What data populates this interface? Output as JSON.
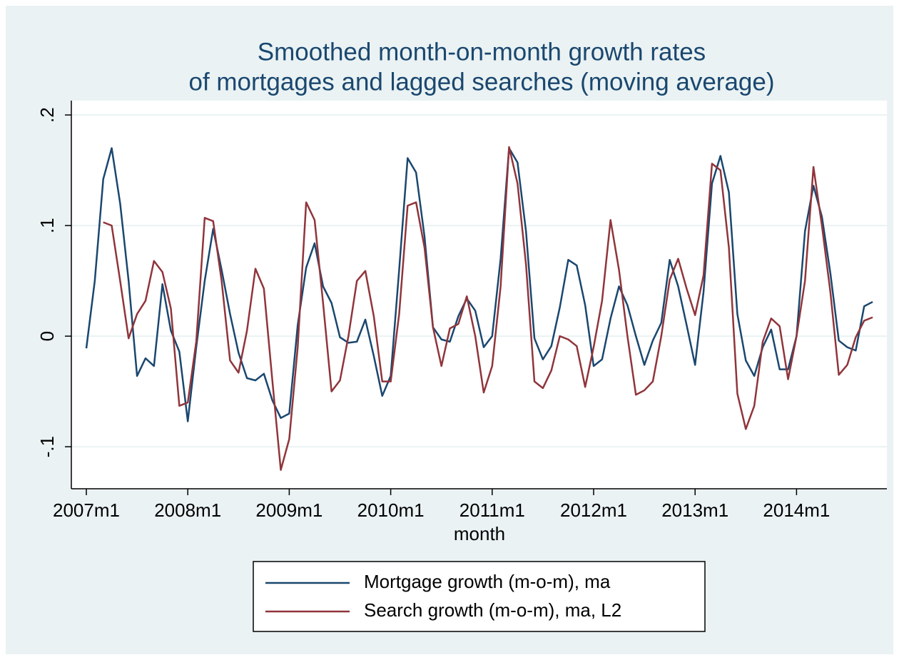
{
  "chart_data": {
    "type": "line",
    "title": [
      "Smoothed month-on-month growth rates",
      "of mortgages and lagged searches (moving average)"
    ],
    "xlabel": "month",
    "categories": [
      "2007m1",
      null,
      null,
      null,
      null,
      null,
      null,
      null,
      null,
      null,
      null,
      null,
      "2008m1",
      null,
      null,
      null,
      null,
      null,
      null,
      null,
      null,
      null,
      null,
      null,
      "2009m1",
      null,
      null,
      null,
      null,
      null,
      null,
      null,
      null,
      null,
      null,
      null,
      "2010m1",
      null,
      null,
      null,
      null,
      null,
      null,
      null,
      null,
      null,
      null,
      null,
      "2011m1",
      null,
      null,
      null,
      null,
      null,
      null,
      null,
      null,
      null,
      null,
      null,
      "2012m1",
      null,
      null,
      null,
      null,
      null,
      null,
      null,
      null,
      null,
      null,
      null,
      "2013m1",
      null,
      null,
      null,
      null,
      null,
      null,
      null,
      null,
      null,
      null,
      null,
      "2014m1",
      null,
      null,
      null,
      null,
      null,
      null,
      null,
      null,
      null
    ],
    "series": [
      {
        "name": "Mortgage growth (m-o-m), ma",
        "color": "#1a476f",
        "values": [
          -0.011,
          0.05,
          0.142,
          0.17,
          0.12,
          0.05,
          -0.036,
          -0.02,
          -0.027,
          0.047,
          0.005,
          -0.014,
          -0.077,
          -0.01,
          0.05,
          0.097,
          0.06,
          0.02,
          -0.015,
          -0.038,
          -0.04,
          -0.034,
          -0.058,
          -0.074,
          -0.07,
          0.01,
          0.062,
          0.084,
          0.045,
          0.03,
          -0.001,
          -0.006,
          -0.005,
          0.015,
          -0.018,
          -0.054,
          -0.036,
          0.06,
          0.161,
          0.148,
          0.09,
          0.008,
          -0.003,
          -0.005,
          0.018,
          0.034,
          0.023,
          -0.01,
          0.0,
          0.07,
          0.17,
          0.157,
          0.095,
          -0.002,
          -0.021,
          -0.009,
          0.026,
          0.069,
          0.064,
          0.028,
          -0.027,
          -0.021,
          0.016,
          0.045,
          0.028,
          0.0,
          -0.026,
          -0.004,
          0.012,
          0.069,
          0.045,
          0.01,
          -0.026,
          0.04,
          0.138,
          0.163,
          0.13,
          0.02,
          -0.022,
          -0.036,
          -0.01,
          0.006,
          -0.03,
          -0.03,
          0.0,
          0.095,
          0.136,
          0.108,
          0.057,
          -0.004,
          -0.01,
          -0.013,
          0.027,
          0.031
        ]
      },
      {
        "name": "Search growth (m-o-m), ma, L2",
        "color": "#90353b",
        "values": [
          null,
          null,
          0.103,
          0.1,
          0.05,
          -0.002,
          0.02,
          0.032,
          0.068,
          0.058,
          0.025,
          -0.063,
          -0.06,
          -0.005,
          0.107,
          0.104,
          0.05,
          -0.022,
          -0.033,
          0.005,
          0.061,
          0.043,
          -0.04,
          -0.121,
          -0.093,
          -0.01,
          0.121,
          0.105,
          0.03,
          -0.05,
          -0.04,
          0.0,
          0.05,
          0.059,
          0.018,
          -0.041,
          -0.041,
          0.02,
          0.118,
          0.121,
          0.08,
          0.008,
          -0.027,
          0.007,
          0.011,
          0.036,
          0.0,
          -0.051,
          -0.027,
          0.045,
          0.171,
          0.138,
          0.065,
          -0.041,
          -0.047,
          -0.031,
          0.0,
          -0.003,
          -0.009,
          -0.046,
          -0.01,
          0.032,
          0.105,
          0.06,
          0.0,
          -0.053,
          -0.049,
          -0.041,
          0.0,
          0.051,
          0.07,
          0.043,
          0.019,
          0.055,
          0.156,
          0.15,
          0.08,
          -0.052,
          -0.084,
          -0.063,
          -0.005,
          0.016,
          0.009,
          -0.039,
          0.0,
          0.05,
          0.153,
          0.1,
          0.04,
          -0.035,
          -0.026,
          -0.001,
          0.014,
          0.017
        ]
      }
    ],
    "ylim": [
      -0.138,
      0.213
    ],
    "yticks": [
      {
        "value": -0.1,
        "label": "-.1"
      },
      0,
      {
        "value": 0.1,
        "label": ".1"
      },
      {
        "value": 0.2,
        "label": ".2"
      }
    ],
    "grid": true,
    "legend": "bottom"
  }
}
